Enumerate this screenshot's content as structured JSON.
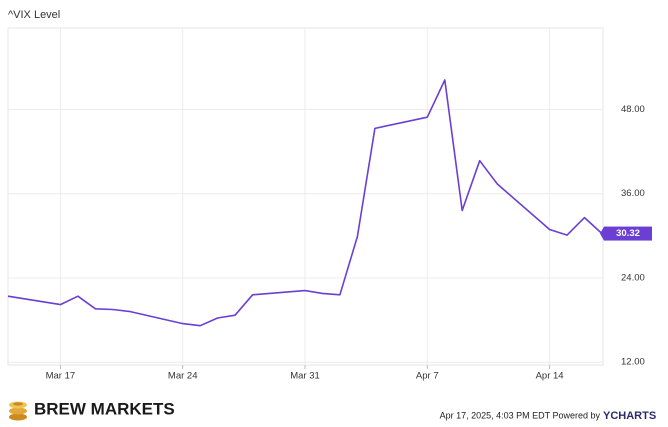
{
  "chart_data": {
    "type": "line",
    "title": "^VIX Level",
    "x": [
      "Mar 14",
      "Mar 17",
      "Mar 18",
      "Mar 19",
      "Mar 20",
      "Mar 21",
      "Mar 24",
      "Mar 25",
      "Mar 26",
      "Mar 27",
      "Mar 28",
      "Mar 31",
      "Apr 1",
      "Apr 2",
      "Apr 3",
      "Apr 4",
      "Apr 7",
      "Apr 8",
      "Apr 9",
      "Apr 10",
      "Apr 11",
      "Apr 14",
      "Apr 15",
      "Apr 16",
      "Apr 17"
    ],
    "series": [
      {
        "name": "^VIX Level",
        "color": "#6b3fd4",
        "values": [
          21.4,
          20.2,
          21.4,
          19.6,
          19.5,
          19.2,
          17.5,
          17.2,
          18.3,
          18.7,
          21.6,
          22.2,
          21.8,
          21.6,
          29.9,
          45.3,
          46.9,
          52.2,
          33.6,
          40.7,
          37.4,
          30.9,
          30.1,
          32.6,
          30.32
        ]
      }
    ],
    "xlim": [
      "Mar 14",
      "Apr 17"
    ],
    "xticks": [
      "Mar 17",
      "Mar 24",
      "Mar 31",
      "Apr 7",
      "Apr 14"
    ],
    "ylim": [
      11.6,
      59.6
    ],
    "yticks": [
      {
        "value": 12,
        "label": "12.00"
      },
      {
        "value": 24,
        "label": "24.00"
      },
      {
        "value": 36,
        "label": "36.00"
      },
      {
        "value": 48,
        "label": "48.00"
      }
    ],
    "grid": true
  },
  "footer": {
    "brand": "BREW MARKETS",
    "timestamp": "Apr 17, 2025, 4:03 PM EDT Powered by",
    "provider": "YCHARTS"
  }
}
